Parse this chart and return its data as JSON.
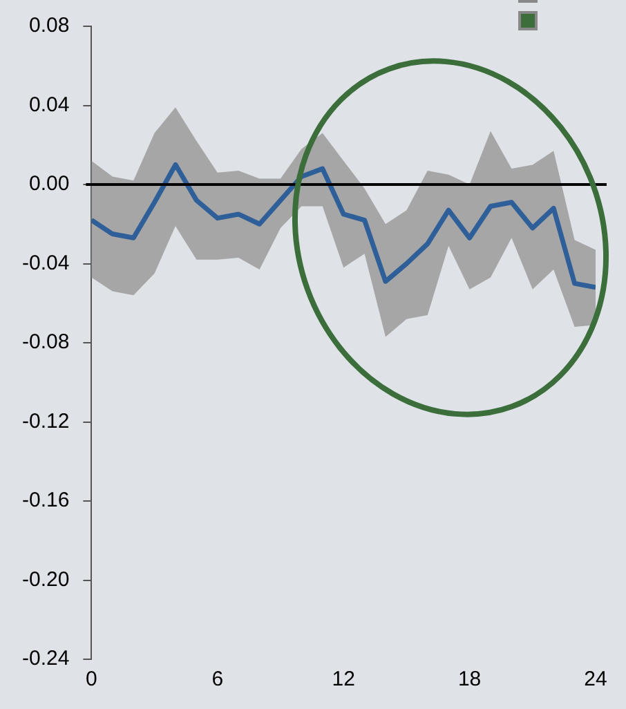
{
  "chart_data": {
    "type": "line",
    "x": [
      0,
      1,
      2,
      3,
      4,
      5,
      6,
      7,
      8,
      9,
      10,
      11,
      12,
      13,
      14,
      15,
      16,
      17,
      18,
      19,
      20,
      21,
      22,
      23,
      24
    ],
    "series": [
      {
        "color": "#2f5f98",
        "values": [
          -0.018,
          -0.025,
          -0.027,
          -0.009,
          0.01,
          -0.008,
          -0.017,
          -0.015,
          -0.02,
          -0.008,
          0.004,
          0.008,
          -0.015,
          -0.018,
          -0.049,
          -0.04,
          -0.03,
          -0.013,
          -0.027,
          -0.011,
          -0.009,
          -0.022,
          -0.012,
          -0.05,
          -0.052
        ],
        "lower": [
          -0.047,
          -0.054,
          -0.056,
          -0.045,
          -0.021,
          -0.038,
          -0.038,
          -0.037,
          -0.043,
          -0.022,
          -0.011,
          -0.011,
          -0.042,
          -0.035,
          -0.077,
          -0.068,
          -0.066,
          -0.031,
          -0.053,
          -0.047,
          -0.027,
          -0.053,
          -0.043,
          -0.072,
          -0.071
        ],
        "upper": [
          0.012,
          0.004,
          0.002,
          0.026,
          0.039,
          0.022,
          0.006,
          0.007,
          0.003,
          0.003,
          0.018,
          0.026,
          0.012,
          -0.002,
          -0.02,
          -0.013,
          0.007,
          0.005,
          0.0,
          0.027,
          0.008,
          0.01,
          0.017,
          -0.028,
          -0.033
        ]
      }
    ],
    "xlim": [
      0,
      24
    ],
    "xticks": [
      0,
      6,
      12,
      18,
      24
    ],
    "ylim": [
      -0.24,
      0.08
    ],
    "yticks": [
      {
        "value": -0.24,
        "label": "-0.24"
      },
      {
        "value": -0.2,
        "label": "-0.20"
      },
      {
        "value": -0.16,
        "label": "-0.16"
      },
      {
        "value": -0.12,
        "label": "-0.12"
      },
      {
        "value": -0.08,
        "label": "-0.08"
      },
      {
        "value": -0.04,
        "label": "-0.04"
      },
      {
        "value": 0,
        "label": "0.00"
      },
      {
        "value": 0.04,
        "label": "0.04"
      },
      {
        "value": 0.08,
        "label": "0.08"
      }
    ],
    "ref_lines": [
      {
        "axis": "y",
        "value": 0,
        "color": "#000000"
      }
    ],
    "grid": false,
    "legend": false,
    "marker": "none",
    "line_style": "solid"
  }
}
